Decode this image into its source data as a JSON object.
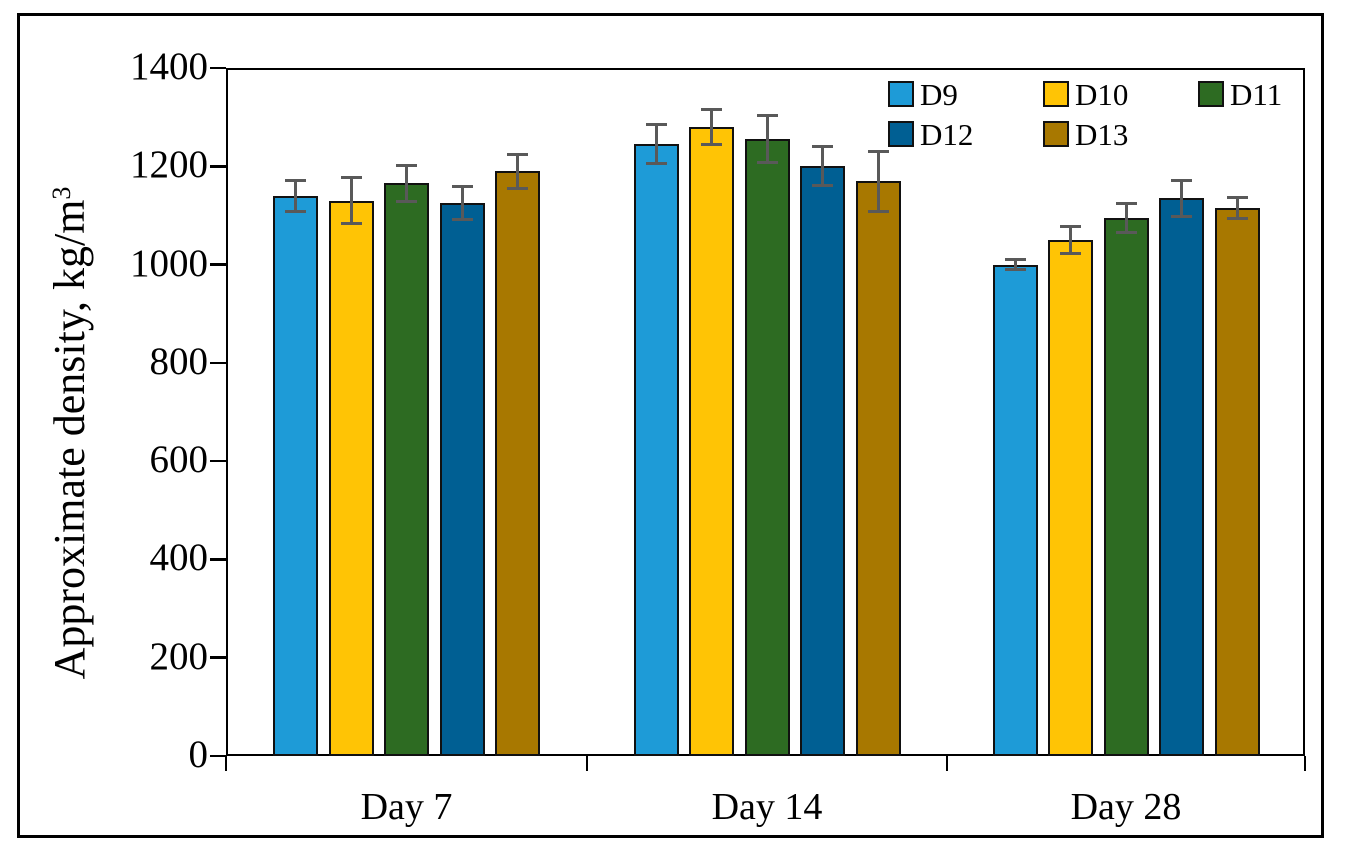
{
  "figure": {
    "background_color": "#ffffff",
    "border_color": "#000000"
  },
  "chart_data": {
    "type": "bar",
    "title": "",
    "xlabel": "",
    "ylabel": "Approximate density, kg/m",
    "ylabel_superscript": "3",
    "ylim": [
      0,
      1400
    ],
    "yticks": [
      0,
      200,
      400,
      600,
      800,
      1000,
      1200,
      1400
    ],
    "categories": [
      "Day 7",
      "Day 14",
      "Day 28"
    ],
    "grid": false,
    "legend_position": "inside-top-right",
    "error_bars": true,
    "error_bar_color": "#595959",
    "bar_border_color": "#111111",
    "series": [
      {
        "name": "D9",
        "color": "#1E9BD7",
        "values": [
          1140,
          1245,
          1000
        ],
        "errors": [
          32,
          40,
          10
        ]
      },
      {
        "name": "D10",
        "color": "#FFC405",
        "values": [
          1130,
          1280,
          1050
        ],
        "errors": [
          47,
          36,
          27
        ]
      },
      {
        "name": "D11",
        "color": "#2D6B22",
        "values": [
          1165,
          1255,
          1095
        ],
        "errors": [
          37,
          48,
          30
        ]
      },
      {
        "name": "D12",
        "color": "#005F93",
        "values": [
          1125,
          1200,
          1135
        ],
        "errors": [
          34,
          40,
          37
        ]
      },
      {
        "name": "D13",
        "color": "#A87800",
        "values": [
          1190,
          1170,
          1115
        ],
        "errors": [
          35,
          61,
          21
        ]
      }
    ]
  }
}
